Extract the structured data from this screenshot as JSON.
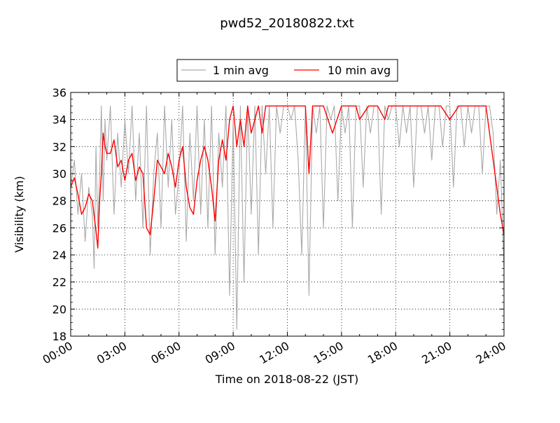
{
  "chart_data": {
    "type": "line",
    "title": "pwd52_20180822.txt",
    "xlabel": "Time on 2018-08-22 (JST)",
    "ylabel": "Visibility (km)",
    "xlim": [
      0,
      24
    ],
    "ylim": [
      18,
      36
    ],
    "x_tick_labels": [
      "00:00",
      "03:00",
      "06:00",
      "09:00",
      "12:00",
      "15:00",
      "18:00",
      "21:00",
      "24:00"
    ],
    "x_tick_values": [
      0,
      3,
      6,
      9,
      12,
      15,
      18,
      21,
      24
    ],
    "y_tick_values": [
      18,
      20,
      22,
      24,
      26,
      28,
      30,
      32,
      34,
      36
    ],
    "grid": true,
    "legend_position": "top-center",
    "series": [
      {
        "name": "1 min avg",
        "color": "#aaaaaa",
        "x": [
          0,
          0.2,
          0.4,
          0.6,
          0.8,
          1.0,
          1.2,
          1.3,
          1.4,
          1.5,
          1.6,
          1.7,
          1.8,
          1.9,
          2.0,
          2.2,
          2.4,
          2.6,
          2.8,
          3.0,
          3.2,
          3.4,
          3.6,
          3.8,
          4.0,
          4.2,
          4.4,
          4.6,
          4.8,
          5.0,
          5.2,
          5.4,
          5.6,
          5.8,
          6.0,
          6.2,
          6.4,
          6.6,
          6.8,
          7.0,
          7.2,
          7.4,
          7.6,
          7.8,
          8.0,
          8.2,
          8.4,
          8.6,
          8.8,
          9.0,
          9.2,
          9.4,
          9.6,
          9.8,
          10.0,
          10.2,
          10.4,
          10.6,
          10.8,
          11.0,
          11.2,
          11.4,
          11.6,
          11.8,
          12.0,
          12.2,
          12.4,
          12.6,
          12.8,
          13.0,
          13.2,
          13.4,
          13.6,
          13.8,
          14.0,
          14.2,
          14.4,
          14.6,
          14.8,
          15.0,
          15.2,
          15.4,
          15.6,
          15.8,
          16.0,
          16.2,
          16.4,
          16.6,
          16.8,
          17.0,
          17.2,
          17.4,
          17.6,
          17.8,
          18.0,
          18.2,
          18.4,
          18.6,
          18.8,
          19.0,
          19.2,
          19.4,
          19.6,
          19.8,
          20.0,
          20.2,
          20.4,
          20.6,
          20.8,
          21.0,
          21.2,
          21.4,
          21.6,
          21.8,
          22.0,
          22.2,
          22.4,
          22.6,
          22.8,
          23.0,
          23.2,
          23.4,
          23.6,
          23.8,
          24.0
        ],
        "y": [
          29,
          31,
          27,
          30,
          25,
          29,
          27,
          23,
          32,
          26,
          30,
          35,
          28,
          34,
          31,
          35,
          27,
          33,
          29,
          34,
          30,
          35,
          28,
          33,
          26,
          35,
          24,
          30,
          33,
          26,
          35,
          29,
          34,
          27,
          30,
          35,
          25,
          33,
          28,
          35,
          27,
          34,
          26,
          35,
          24,
          33,
          29,
          35,
          21,
          34,
          18.5,
          35,
          22,
          35,
          27,
          35,
          24,
          35,
          30,
          35,
          26,
          35,
          33,
          35,
          35,
          34,
          35,
          31,
          24,
          35,
          21,
          35,
          33,
          35,
          26,
          35,
          34,
          35,
          28,
          35,
          33,
          35,
          26,
          35,
          35,
          29,
          35,
          33,
          35,
          35,
          27,
          35,
          34,
          35,
          35,
          32,
          35,
          33,
          35,
          29,
          35,
          35,
          33,
          35,
          31,
          35,
          35,
          32,
          35,
          35,
          29,
          35,
          35,
          32,
          35,
          33,
          35,
          35,
          30,
          35,
          35,
          33,
          27,
          31,
          23
        ]
      },
      {
        "name": "10 min avg",
        "color": "#ff0000",
        "x": [
          0,
          0.2,
          0.4,
          0.6,
          0.8,
          1.0,
          1.2,
          1.4,
          1.5,
          1.6,
          1.7,
          1.8,
          1.9,
          2.0,
          2.2,
          2.4,
          2.6,
          2.8,
          3.0,
          3.2,
          3.4,
          3.6,
          3.8,
          4.0,
          4.2,
          4.4,
          4.6,
          4.8,
          5.0,
          5.2,
          5.4,
          5.6,
          5.8,
          6.0,
          6.2,
          6.4,
          6.6,
          6.8,
          7.0,
          7.2,
          7.4,
          7.6,
          7.8,
          8.0,
          8.2,
          8.4,
          8.6,
          8.8,
          9.0,
          9.2,
          9.4,
          9.6,
          9.8,
          10.0,
          10.2,
          10.4,
          10.6,
          10.8,
          11.0,
          11.2,
          11.4,
          11.6,
          11.8,
          12.0,
          12.4,
          12.8,
          13.0,
          13.2,
          13.4,
          13.6,
          14.0,
          14.5,
          15.0,
          15.5,
          15.8,
          16.0,
          16.5,
          17.0,
          17.4,
          17.6,
          17.8,
          18.0,
          18.5,
          19.0,
          19.5,
          20.0,
          20.5,
          21.0,
          21.5,
          22.0,
          22.5,
          23.0,
          23.4,
          23.6,
          23.8,
          24.0
        ],
        "y": [
          29,
          29.7,
          28.5,
          27,
          27.5,
          28.5,
          28,
          25.8,
          24.5,
          28,
          30,
          33,
          32,
          31.5,
          31.5,
          32.5,
          30.5,
          31,
          29.5,
          31,
          31.5,
          29.5,
          30.5,
          30,
          26,
          25.5,
          28,
          31,
          30.5,
          30,
          31.5,
          30.5,
          29,
          31,
          32,
          29,
          27.5,
          27,
          29.5,
          31,
          32,
          31,
          29,
          26.5,
          31,
          32.5,
          31,
          34,
          35,
          32,
          34,
          32,
          35,
          33,
          34,
          35,
          33,
          35,
          35,
          35,
          35,
          35,
          35,
          35,
          35,
          35,
          35,
          30,
          35,
          35,
          35,
          33,
          35,
          35,
          35,
          34,
          35,
          35,
          34,
          35,
          35,
          35,
          35,
          35,
          35,
          35,
          35,
          34,
          35,
          35,
          35,
          35,
          31,
          29,
          27,
          25.5
        ]
      }
    ]
  }
}
